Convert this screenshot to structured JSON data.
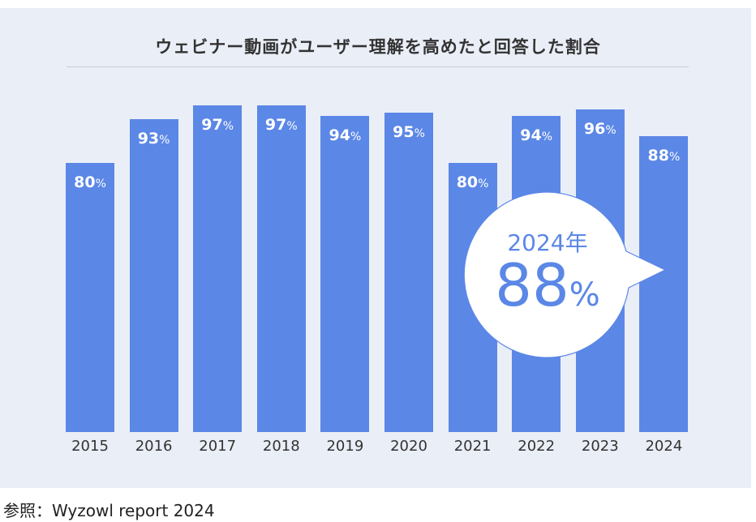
{
  "chart_data": {
    "type": "bar",
    "title": "ウェビナー動画がユーザー理解を高めたと回答した割合",
    "categories": [
      "2015",
      "2016",
      "2017",
      "2018",
      "2019",
      "2020",
      "2021",
      "2022",
      "2023",
      "2024"
    ],
    "values": [
      80,
      93,
      97,
      97,
      94,
      95,
      80,
      94,
      96,
      88
    ],
    "unit": "%",
    "xlabel": "",
    "ylabel": "",
    "ylim": [
      0,
      100
    ],
    "grid": false,
    "annotation": {
      "year": "2024年",
      "value": "88",
      "unit": "%"
    },
    "bar_color": "#5b87e6"
  },
  "source": "参照：Wyzowl report 2024"
}
